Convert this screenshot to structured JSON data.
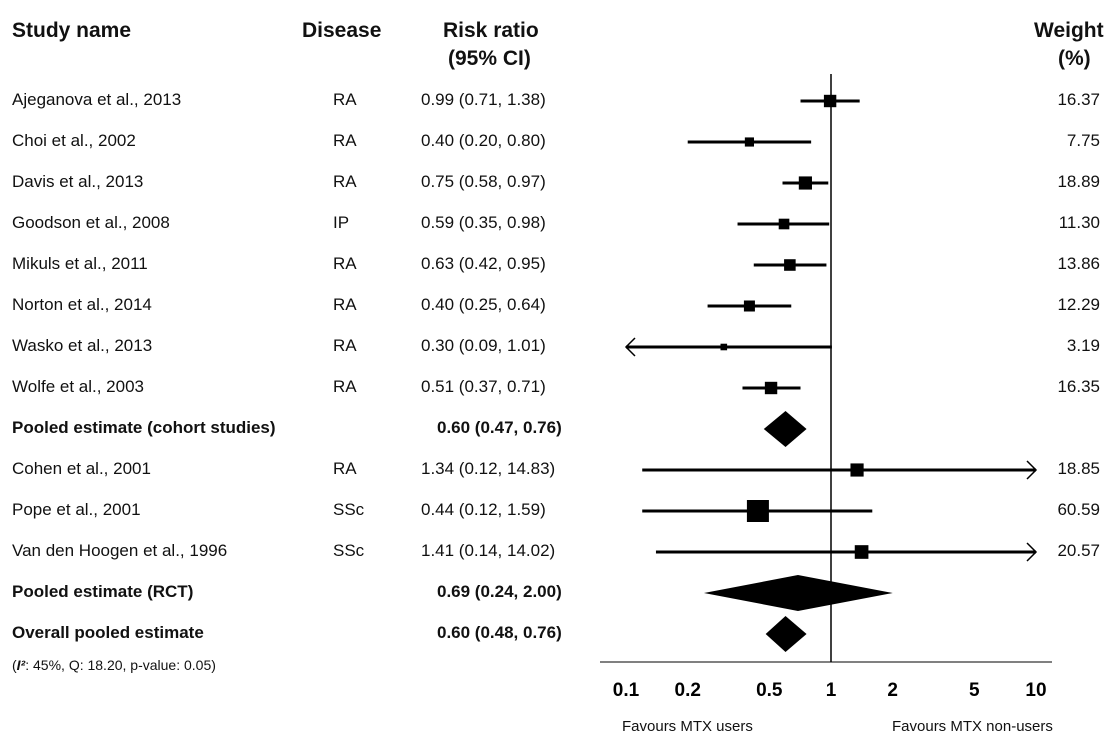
{
  "headers": {
    "study": "Study name",
    "disease": "Disease",
    "rr_line1": "Risk ratio",
    "rr_line2": "(95% CI)",
    "weight_line1": "Weight",
    "weight_line2": "(%)"
  },
  "rows": [
    {
      "study": "Ajeganova et al., 2013",
      "disease": "RA",
      "ci": "0.99 (0.71, 1.38)",
      "weight": "16.37",
      "bold": false
    },
    {
      "study": "Choi et al., 2002",
      "disease": "RA",
      "ci": "0.40 (0.20, 0.80)",
      "weight": "7.75",
      "bold": false
    },
    {
      "study": "Davis et al., 2013",
      "disease": "RA",
      "ci": "0.75 (0.58, 0.97)",
      "weight": "18.89",
      "bold": false
    },
    {
      "study": "Goodson et al., 2008",
      "disease": "IP",
      "ci": "0.59 (0.35, 0.98)",
      "weight": "11.30",
      "bold": false
    },
    {
      "study": "Mikuls et al., 2011",
      "disease": "RA",
      "ci": "0.63 (0.42, 0.95)",
      "weight": "13.86",
      "bold": false
    },
    {
      "study": "Norton et al., 2014",
      "disease": "RA",
      "ci": "0.40 (0.25, 0.64)",
      "weight": "12.29",
      "bold": false
    },
    {
      "study": "Wasko et al., 2013",
      "disease": "RA",
      "ci": "0.30 (0.09, 1.01)",
      "weight": "3.19",
      "bold": false
    },
    {
      "study": "Wolfe et al., 2003",
      "disease": "RA",
      "ci": "0.51 (0.37, 0.71)",
      "weight": "16.35",
      "bold": false
    },
    {
      "study": "Pooled estimate (cohort studies)",
      "disease": "",
      "ci": "0.60 (0.47, 0.76)",
      "weight": "",
      "bold": true
    },
    {
      "study": "Cohen et al., 2001",
      "disease": "RA",
      "ci": "1.34 (0.12, 14.83)",
      "weight": "18.85",
      "bold": false
    },
    {
      "study": "Pope et al., 2001",
      "disease": "SSc",
      "ci": "0.44 (0.12, 1.59)",
      "weight": "60.59",
      "bold": false
    },
    {
      "study": "Van den Hoogen et al., 1996",
      "disease": "SSc",
      "ci": "1.41 (0.14, 14.02)",
      "weight": "20.57",
      "bold": false
    },
    {
      "study": "Pooled estimate (RCT)",
      "disease": "",
      "ci": "0.69 (0.24, 2.00)",
      "weight": "",
      "bold": true
    },
    {
      "study": "Overall pooled estimate",
      "disease": "",
      "ci": "0.60 (0.48, 0.76)",
      "weight": "",
      "bold": true
    }
  ],
  "heterogeneity_prefix": "(",
  "heterogeneity_i2": "I²",
  "heterogeneity_rest": ": 45%, Q: 18.20, p-value: 0.05)",
  "chart_data": {
    "type": "forest",
    "x_scale": "log",
    "xlim": [
      0.1,
      10
    ],
    "x_ticks": [
      0.1,
      0.2,
      0.5,
      1,
      2,
      5,
      10
    ],
    "x_tick_labels": [
      "0.1",
      "0.2",
      "0.5",
      "1",
      "2",
      "5",
      "10"
    ],
    "reference_line": 1,
    "left_label": "Favours MTX users",
    "right_label": "Favours MTX non-users",
    "estimates": [
      {
        "study": "Ajeganova et al., 2013",
        "kind": "study",
        "rr": 0.99,
        "lo": 0.71,
        "hi": 1.38,
        "weight": 16.37
      },
      {
        "study": "Choi et al., 2002",
        "kind": "study",
        "rr": 0.4,
        "lo": 0.2,
        "hi": 0.8,
        "weight": 7.75
      },
      {
        "study": "Davis et al., 2013",
        "kind": "study",
        "rr": 0.75,
        "lo": 0.58,
        "hi": 0.97,
        "weight": 18.89
      },
      {
        "study": "Goodson et al., 2008",
        "kind": "study",
        "rr": 0.59,
        "lo": 0.35,
        "hi": 0.98,
        "weight": 11.3
      },
      {
        "study": "Mikuls et al., 2011",
        "kind": "study",
        "rr": 0.63,
        "lo": 0.42,
        "hi": 0.95,
        "weight": 13.86
      },
      {
        "study": "Norton et al., 2014",
        "kind": "study",
        "rr": 0.4,
        "lo": 0.25,
        "hi": 0.64,
        "weight": 12.29
      },
      {
        "study": "Wasko et al., 2013",
        "kind": "study",
        "rr": 0.3,
        "lo": 0.09,
        "hi": 1.01,
        "weight": 3.19
      },
      {
        "study": "Wolfe et al., 2003",
        "kind": "study",
        "rr": 0.51,
        "lo": 0.37,
        "hi": 0.71,
        "weight": 16.35
      },
      {
        "study": "Pooled estimate (cohort studies)",
        "kind": "pooled",
        "rr": 0.6,
        "lo": 0.47,
        "hi": 0.76
      },
      {
        "study": "Cohen et al., 2001",
        "kind": "study",
        "rr": 1.34,
        "lo": 0.12,
        "hi": 14.83,
        "weight": 18.85
      },
      {
        "study": "Pope et al., 2001",
        "kind": "study",
        "rr": 0.44,
        "lo": 0.12,
        "hi": 1.59,
        "weight": 60.59
      },
      {
        "study": "Van den Hoogen et al., 1996",
        "kind": "study",
        "rr": 1.41,
        "lo": 0.14,
        "hi": 14.02,
        "weight": 20.57
      },
      {
        "study": "Pooled estimate (RCT)",
        "kind": "pooled",
        "rr": 0.69,
        "lo": 0.24,
        "hi": 2.0
      },
      {
        "study": "Overall pooled estimate",
        "kind": "pooled",
        "rr": 0.6,
        "lo": 0.48,
        "hi": 0.76
      }
    ]
  }
}
